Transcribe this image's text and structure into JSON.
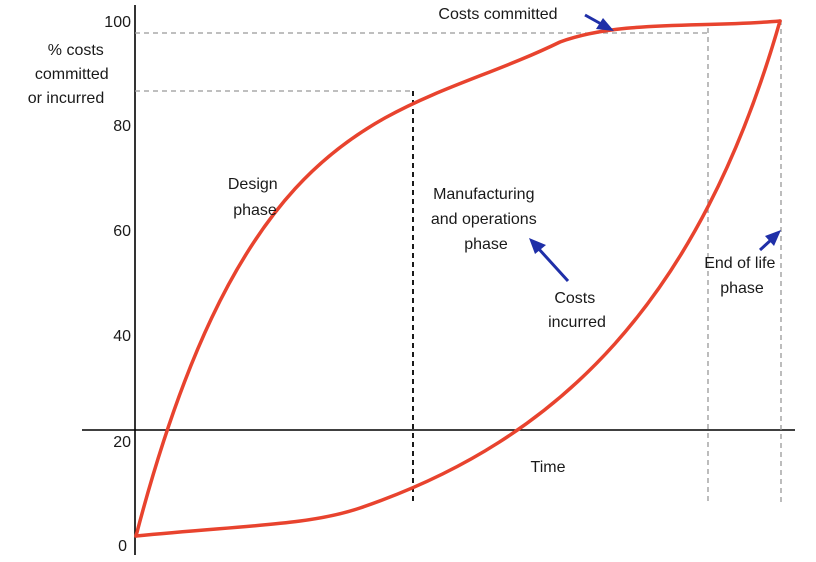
{
  "chart_data": {
    "type": "line",
    "ylabel": [
      "% costs",
      "committed",
      "or incurred"
    ],
    "xlabel": "Time",
    "ylim": [
      0,
      100
    ],
    "yticks": [
      "0",
      "20",
      "40",
      "60",
      "80",
      "100"
    ],
    "grid": false,
    "colors": {
      "curve": "#e8432e",
      "arrow": "#1f2fa8",
      "axis": "#000000",
      "guide": "#999999"
    },
    "series": [
      {
        "name": "Costs committed",
        "label_lines": [
          "Costs committed"
        ]
      },
      {
        "name": "Costs incurred",
        "label_lines": [
          "Costs",
          "incurred"
        ]
      }
    ],
    "annotations": {
      "design_phase": [
        "Design",
        "phase"
      ],
      "manufacturing_phase": [
        "Manufacturing",
        "and operations",
        "phase"
      ],
      "end_of_life_phase": [
        "End of life",
        "phase"
      ]
    },
    "reference_levels": [
      {
        "y": 98,
        "description": "dashed level of costs committed"
      },
      {
        "y": 88,
        "description": "dashed level at end of design phase"
      }
    ]
  }
}
